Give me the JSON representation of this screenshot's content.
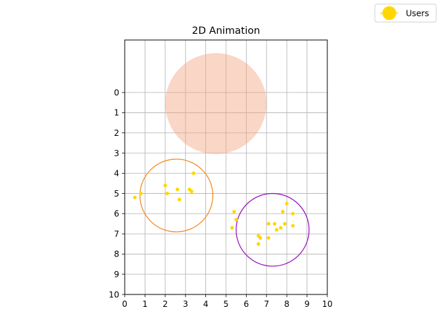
{
  "chart_data": {
    "type": "scatter",
    "title": "2D Animation",
    "xlabel": "",
    "ylabel": "",
    "xlim": [
      0,
      10
    ],
    "ylim": [
      10,
      -2.6
    ],
    "y_inverted": true,
    "xticks": [
      "0",
      "1",
      "2",
      "3",
      "4",
      "5",
      "6",
      "7",
      "8",
      "9",
      "10"
    ],
    "yticks": [
      "0",
      "1",
      "2",
      "3",
      "4",
      "5",
      "6",
      "7",
      "8",
      "9",
      "10"
    ],
    "grid": true,
    "legend": {
      "placement": "top-right",
      "entries": [
        {
          "label": "Users",
          "color": "#FFD700"
        }
      ]
    },
    "series": [
      {
        "name": "Users",
        "color": "#FFD700",
        "points": [
          {
            "x": 0.5,
            "y": 5.2
          },
          {
            "x": 0.8,
            "y": 5.0
          },
          {
            "x": 2.0,
            "y": 4.6
          },
          {
            "x": 2.1,
            "y": 5.0
          },
          {
            "x": 2.6,
            "y": 4.8
          },
          {
            "x": 2.7,
            "y": 5.3
          },
          {
            "x": 3.2,
            "y": 4.8
          },
          {
            "x": 3.3,
            "y": 4.9
          },
          {
            "x": 3.4,
            "y": 4.0
          },
          {
            "x": 5.3,
            "y": 6.7
          },
          {
            "x": 5.4,
            "y": 5.9
          },
          {
            "x": 5.5,
            "y": 6.3
          },
          {
            "x": 6.6,
            "y": 7.1
          },
          {
            "x": 6.6,
            "y": 7.5
          },
          {
            "x": 6.7,
            "y": 7.2
          },
          {
            "x": 7.1,
            "y": 6.5
          },
          {
            "x": 7.1,
            "y": 7.2
          },
          {
            "x": 7.4,
            "y": 6.5
          },
          {
            "x": 7.5,
            "y": 6.8
          },
          {
            "x": 7.7,
            "y": 6.7
          },
          {
            "x": 7.8,
            "y": 5.9
          },
          {
            "x": 7.9,
            "y": 6.5
          },
          {
            "x": 8.0,
            "y": 5.5
          },
          {
            "x": 8.3,
            "y": 6.0
          },
          {
            "x": 8.3,
            "y": 6.6
          }
        ]
      }
    ],
    "shapes": [
      {
        "kind": "filled-circle",
        "cx": 4.5,
        "cy": 0.55,
        "r": 2.5,
        "color": "#F4A582",
        "opacity": 0.45
      },
      {
        "kind": "ring",
        "cx": 2.55,
        "cy": 5.1,
        "r": 1.8,
        "color": "#F28E2B"
      },
      {
        "kind": "ring",
        "cx": 7.3,
        "cy": 6.8,
        "r": 1.8,
        "color": "#9A1BBE"
      }
    ]
  }
}
